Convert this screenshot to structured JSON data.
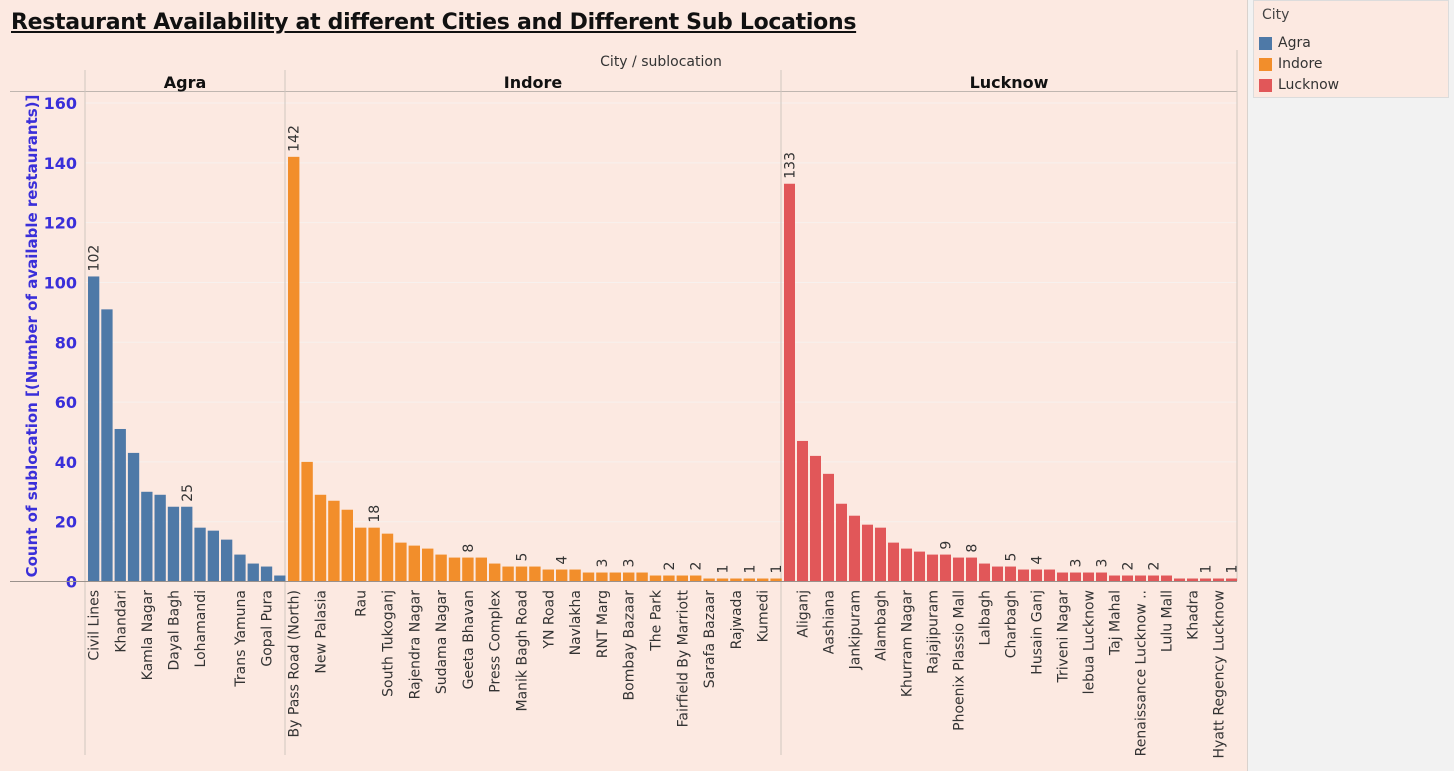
{
  "title": "Restaurant Availability at different Cities and Different Sub Locations",
  "legend": {
    "title": "City",
    "items": [
      {
        "label": "Agra",
        "color": "#4e79a7"
      },
      {
        "label": "Indore",
        "color": "#f28e2b"
      },
      {
        "label": "Lucknow",
        "color": "#e15759"
      }
    ]
  },
  "chart_data": {
    "type": "bar",
    "column_header": "City / sublocation",
    "ylabel": "Count of sublocation [(Number of available restaurants)]",
    "ylim": [
      0,
      160
    ],
    "yticks": [
      0,
      20,
      40,
      60,
      80,
      100,
      120,
      140,
      160
    ],
    "grid": true,
    "legend_position": "top-right",
    "series": [
      {
        "name": "Agra",
        "color": "#4e79a7",
        "bars": [
          {
            "label": "Civil Lines",
            "value": 102,
            "show_value": true,
            "show_label": true
          },
          {
            "label": "",
            "value": 91,
            "show_value": false,
            "show_label": false
          },
          {
            "label": "Khandari",
            "value": 51,
            "show_value": false,
            "show_label": true
          },
          {
            "label": "",
            "value": 43,
            "show_value": false,
            "show_label": false
          },
          {
            "label": "Kamla Nagar",
            "value": 30,
            "show_value": false,
            "show_label": true
          },
          {
            "label": "",
            "value": 29,
            "show_value": false,
            "show_label": false
          },
          {
            "label": "Dayal Bagh",
            "value": 25,
            "show_value": false,
            "show_label": true
          },
          {
            "label": "",
            "value": 25,
            "show_value": true,
            "show_label": false
          },
          {
            "label": "Lohamandi",
            "value": 18,
            "show_value": false,
            "show_label": true
          },
          {
            "label": "",
            "value": 17,
            "show_value": false,
            "show_label": false
          },
          {
            "label": "",
            "value": 14,
            "show_value": false,
            "show_label": false
          },
          {
            "label": "Trans Yamuna",
            "value": 9,
            "show_value": false,
            "show_label": true
          },
          {
            "label": "",
            "value": 6,
            "show_value": false,
            "show_label": false
          },
          {
            "label": "Gopal Pura",
            "value": 5,
            "show_value": false,
            "show_label": true
          },
          {
            "label": "",
            "value": 2,
            "show_value": false,
            "show_label": false
          }
        ]
      },
      {
        "name": "Indore",
        "color": "#f28e2b",
        "bars": [
          {
            "label": "By Pass Road (North)",
            "value": 142,
            "show_value": true,
            "show_label": true
          },
          {
            "label": "",
            "value": 40,
            "show_value": false,
            "show_label": false
          },
          {
            "label": "New Palasia",
            "value": 29,
            "show_value": false,
            "show_label": true
          },
          {
            "label": "",
            "value": 27,
            "show_value": false,
            "show_label": false
          },
          {
            "label": "",
            "value": 24,
            "show_value": false,
            "show_label": false
          },
          {
            "label": "Rau",
            "value": 18,
            "show_value": false,
            "show_label": true
          },
          {
            "label": "",
            "value": 18,
            "show_value": true,
            "show_label": false
          },
          {
            "label": "South Tukoganj",
            "value": 16,
            "show_value": false,
            "show_label": true
          },
          {
            "label": "",
            "value": 13,
            "show_value": false,
            "show_label": false
          },
          {
            "label": "Rajendra Nagar",
            "value": 12,
            "show_value": false,
            "show_label": true
          },
          {
            "label": "",
            "value": 11,
            "show_value": false,
            "show_label": false
          },
          {
            "label": "Sudama Nagar",
            "value": 9,
            "show_value": false,
            "show_label": true
          },
          {
            "label": "",
            "value": 8,
            "show_value": false,
            "show_label": false
          },
          {
            "label": "Geeta Bhavan",
            "value": 8,
            "show_value": true,
            "show_label": true
          },
          {
            "label": "",
            "value": 8,
            "show_value": false,
            "show_label": false
          },
          {
            "label": "Press Complex",
            "value": 6,
            "show_value": false,
            "show_label": true
          },
          {
            "label": "",
            "value": 5,
            "show_value": false,
            "show_label": false
          },
          {
            "label": "Manik Bagh Road",
            "value": 5,
            "show_value": true,
            "show_label": true
          },
          {
            "label": "",
            "value": 5,
            "show_value": false,
            "show_label": false
          },
          {
            "label": "YN Road",
            "value": 4,
            "show_value": false,
            "show_label": true
          },
          {
            "label": "",
            "value": 4,
            "show_value": true,
            "show_label": false
          },
          {
            "label": "Navlakha",
            "value": 4,
            "show_value": false,
            "show_label": true
          },
          {
            "label": "",
            "value": 3,
            "show_value": false,
            "show_label": false
          },
          {
            "label": "RNT Marg",
            "value": 3,
            "show_value": true,
            "show_label": true
          },
          {
            "label": "",
            "value": 3,
            "show_value": false,
            "show_label": false
          },
          {
            "label": "Bombay Bazaar",
            "value": 3,
            "show_value": true,
            "show_label": true
          },
          {
            "label": "",
            "value": 3,
            "show_value": false,
            "show_label": false
          },
          {
            "label": "The Park",
            "value": 2,
            "show_value": false,
            "show_label": true
          },
          {
            "label": "",
            "value": 2,
            "show_value": true,
            "show_label": false
          },
          {
            "label": "Fairfield By Marriott",
            "value": 2,
            "show_value": false,
            "show_label": true
          },
          {
            "label": "",
            "value": 2,
            "show_value": true,
            "show_label": false
          },
          {
            "label": "Sarafa Bazaar",
            "value": 1,
            "show_value": false,
            "show_label": true
          },
          {
            "label": "",
            "value": 1,
            "show_value": true,
            "show_label": false
          },
          {
            "label": "Rajwada",
            "value": 1,
            "show_value": false,
            "show_label": true
          },
          {
            "label": "",
            "value": 1,
            "show_value": true,
            "show_label": false
          },
          {
            "label": "Kumedi",
            "value": 1,
            "show_value": false,
            "show_label": true
          },
          {
            "label": "",
            "value": 1,
            "show_value": true,
            "show_label": false
          }
        ]
      },
      {
        "name": "Lucknow",
        "color": "#e15759",
        "bars": [
          {
            "label": "",
            "value": 133,
            "show_value": true,
            "show_label": false
          },
          {
            "label": "Aliganj",
            "value": 47,
            "show_value": false,
            "show_label": true
          },
          {
            "label": "",
            "value": 42,
            "show_value": false,
            "show_label": false
          },
          {
            "label": "Aashiana",
            "value": 36,
            "show_value": false,
            "show_label": true
          },
          {
            "label": "",
            "value": 26,
            "show_value": false,
            "show_label": false
          },
          {
            "label": "Jankipuram",
            "value": 22,
            "show_value": false,
            "show_label": true
          },
          {
            "label": "",
            "value": 19,
            "show_value": false,
            "show_label": false
          },
          {
            "label": "Alambagh",
            "value": 18,
            "show_value": false,
            "show_label": true
          },
          {
            "label": "",
            "value": 13,
            "show_value": false,
            "show_label": false
          },
          {
            "label": "Khurram Nagar",
            "value": 11,
            "show_value": false,
            "show_label": true
          },
          {
            "label": "",
            "value": 10,
            "show_value": false,
            "show_label": false
          },
          {
            "label": "Rajajipuram",
            "value": 9,
            "show_value": false,
            "show_label": true
          },
          {
            "label": "",
            "value": 9,
            "show_value": true,
            "show_label": false
          },
          {
            "label": "Phoenix Plassio Mall",
            "value": 8,
            "show_value": false,
            "show_label": true
          },
          {
            "label": "",
            "value": 8,
            "show_value": true,
            "show_label": false
          },
          {
            "label": "Lalbagh",
            "value": 6,
            "show_value": false,
            "show_label": true
          },
          {
            "label": "",
            "value": 5,
            "show_value": false,
            "show_label": false
          },
          {
            "label": "Charbagh",
            "value": 5,
            "show_value": true,
            "show_label": true
          },
          {
            "label": "",
            "value": 4,
            "show_value": false,
            "show_label": false
          },
          {
            "label": "Husain Ganj",
            "value": 4,
            "show_value": true,
            "show_label": true
          },
          {
            "label": "",
            "value": 4,
            "show_value": false,
            "show_label": false
          },
          {
            "label": "Triveni Nagar",
            "value": 3,
            "show_value": false,
            "show_label": true
          },
          {
            "label": "",
            "value": 3,
            "show_value": true,
            "show_label": false
          },
          {
            "label": "lebua Lucknow",
            "value": 3,
            "show_value": false,
            "show_label": true
          },
          {
            "label": "",
            "value": 3,
            "show_value": true,
            "show_label": false
          },
          {
            "label": "Taj Mahal",
            "value": 2,
            "show_value": false,
            "show_label": true
          },
          {
            "label": "",
            "value": 2,
            "show_value": true,
            "show_label": false
          },
          {
            "label": "Renaissance Lucknow ..",
            "value": 2,
            "show_value": false,
            "show_label": true
          },
          {
            "label": "",
            "value": 2,
            "show_value": true,
            "show_label": false
          },
          {
            "label": "Lulu Mall",
            "value": 2,
            "show_value": false,
            "show_label": true
          },
          {
            "label": "",
            "value": 1,
            "show_value": false,
            "show_label": false
          },
          {
            "label": "Khadra",
            "value": 1,
            "show_value": false,
            "show_label": true
          },
          {
            "label": "",
            "value": 1,
            "show_value": true,
            "show_label": false
          },
          {
            "label": "Hyatt Regency Lucknow",
            "value": 1,
            "show_value": false,
            "show_label": true
          },
          {
            "label": "",
            "value": 1,
            "show_value": true,
            "show_label": false
          }
        ]
      }
    ]
  }
}
